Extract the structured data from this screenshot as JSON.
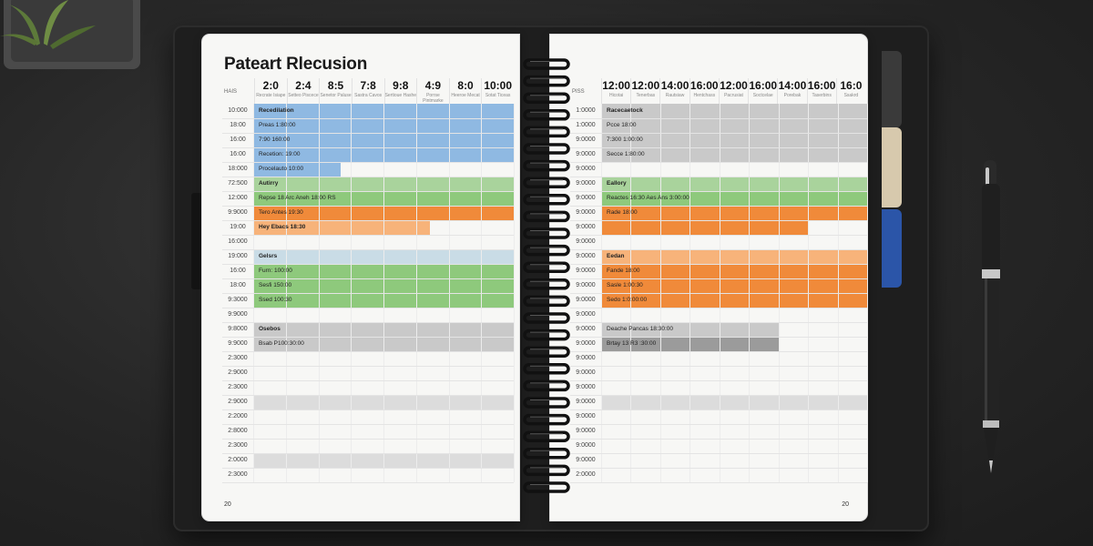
{
  "colors": {
    "blue": "#8fb9e2",
    "green": "#8ec97c",
    "orange": "#f08a3a",
    "light_orange": "#f7b37a",
    "light_green": "#a9d39c",
    "gray": "#c9c9c9",
    "dark_gray": "#9b9b9b",
    "light_blue": "#c9dce6",
    "tab_gray": "#3a3a3a",
    "tab_tan": "#d7c9ad",
    "tab_blue": "#2b55a8"
  },
  "left_page": {
    "title": "Pateart Rlecusion",
    "corner_label": "HAIS",
    "columns": [
      {
        "big": "2:0",
        "small": "Recrate Isiape"
      },
      {
        "big": "2:4",
        "small": "Setteo Piscece"
      },
      {
        "big": "8:5",
        "small": "Senetor Paluse"
      },
      {
        "big": "7:8",
        "small": "Sastra Cavos"
      },
      {
        "big": "9:8",
        "small": "Sertioue Hashe"
      },
      {
        "big": "4:9",
        "small": "Porrse Pintmarke"
      },
      {
        "big": "8:0",
        "small": "Heeroe Mecat"
      },
      {
        "big": "10:00",
        "small": "Sotat Ticeas"
      }
    ],
    "times": [
      "10:000",
      "18:00",
      "16:00",
      "16:00",
      "18:000",
      "72:500",
      "12:000",
      "9:9000",
      "19:00",
      "16:000",
      "19:000",
      "16:00",
      "18:00",
      "9:3000",
      "9:9000",
      "9:8000",
      "9:9000",
      "2:3000",
      "2:9000",
      "2:3000",
      "2:9000",
      "2:2000",
      "2:8000",
      "2:3000",
      "2:0000",
      "2:3000"
    ],
    "labels": [
      {
        "text": "Recedilation",
        "row": 0,
        "bold": true
      },
      {
        "text": "Preas 1:80:00",
        "row": 1
      },
      {
        "text": "7:90 160:00",
        "row": 2
      },
      {
        "text": "Recetion: 19:00",
        "row": 3
      },
      {
        "text": "Procelauto 10:00",
        "row": 4
      },
      {
        "text": "Autirry",
        "row": 5,
        "bold": true
      },
      {
        "text": "Repse 18 Arc Aneh 18:00 RS",
        "row": 6
      },
      {
        "text": "Tero Antes 19:30",
        "row": 7
      },
      {
        "text": "Hey Ebacs 18:30",
        "row": 8,
        "bold": true
      },
      {
        "text": "Gelsrs",
        "row": 10,
        "bold": true
      },
      {
        "text": "Furn: 100:00",
        "row": 11
      },
      {
        "text": "Sesfi 150:00",
        "row": 12
      },
      {
        "text": "Ssed 100:30",
        "row": 13
      },
      {
        "text": "Osebos",
        "row": 15,
        "bold": true
      },
      {
        "text": "Bsab P100:30:00",
        "row": 16
      }
    ],
    "page_number": "20"
  },
  "right_page": {
    "corner_label": "PISS",
    "columns": [
      {
        "big": "12:00",
        "small": "Hicotai"
      },
      {
        "big": "12:00",
        "small": "Tenerbas"
      },
      {
        "big": "14:00",
        "small": "Rautsiaw"
      },
      {
        "big": "16:00",
        "small": "Hentchass"
      },
      {
        "big": "12:00",
        "small": "Pacrusiat"
      },
      {
        "big": "16:00",
        "small": "Soctcelae"
      },
      {
        "big": "14:00",
        "small": "Porebak"
      },
      {
        "big": "16:00",
        "small": "Taserbins"
      },
      {
        "big": "16:0",
        "small": "Ssakrd"
      }
    ],
    "times": [
      "1:0000",
      "1:0000",
      "9:0000",
      "9:0000",
      "9:0000",
      "9:0000",
      "9:0000",
      "9:0000",
      "9:0000",
      "9:0000",
      "9:0000",
      "9:0000",
      "9:0000",
      "9:0000",
      "9:0000",
      "9:0000",
      "9:0000",
      "9:0000",
      "9:0000",
      "9:0000",
      "9:0000",
      "9:0000",
      "9:0000",
      "9:0000",
      "9:0000",
      "2:0000"
    ],
    "labels": [
      {
        "text": "Racecaetock",
        "row": 0,
        "bold": true
      },
      {
        "text": "Pcce 18:00",
        "row": 1
      },
      {
        "text": "7:300 1:00:00",
        "row": 2
      },
      {
        "text": "Secce 1:80:00",
        "row": 3
      },
      {
        "text": "Eallory",
        "row": 5,
        "bold": true
      },
      {
        "text": "Reactes 16:30 Aes Ans 3:00:00",
        "row": 6
      },
      {
        "text": "Rade 18:00",
        "row": 7
      },
      {
        "text": "Eedan",
        "row": 10,
        "bold": true
      },
      {
        "text": "Fande 18:00",
        "row": 11
      },
      {
        "text": "Sasle 1:00:30",
        "row": 12
      },
      {
        "text": "Sedo 1:0:00:00",
        "row": 13
      },
      {
        "text": "Deache Pancas 18:30:00",
        "row": 15
      },
      {
        "text": "Brtay 13 R3 :30:00",
        "row": 16
      }
    ],
    "page_number": "20"
  }
}
